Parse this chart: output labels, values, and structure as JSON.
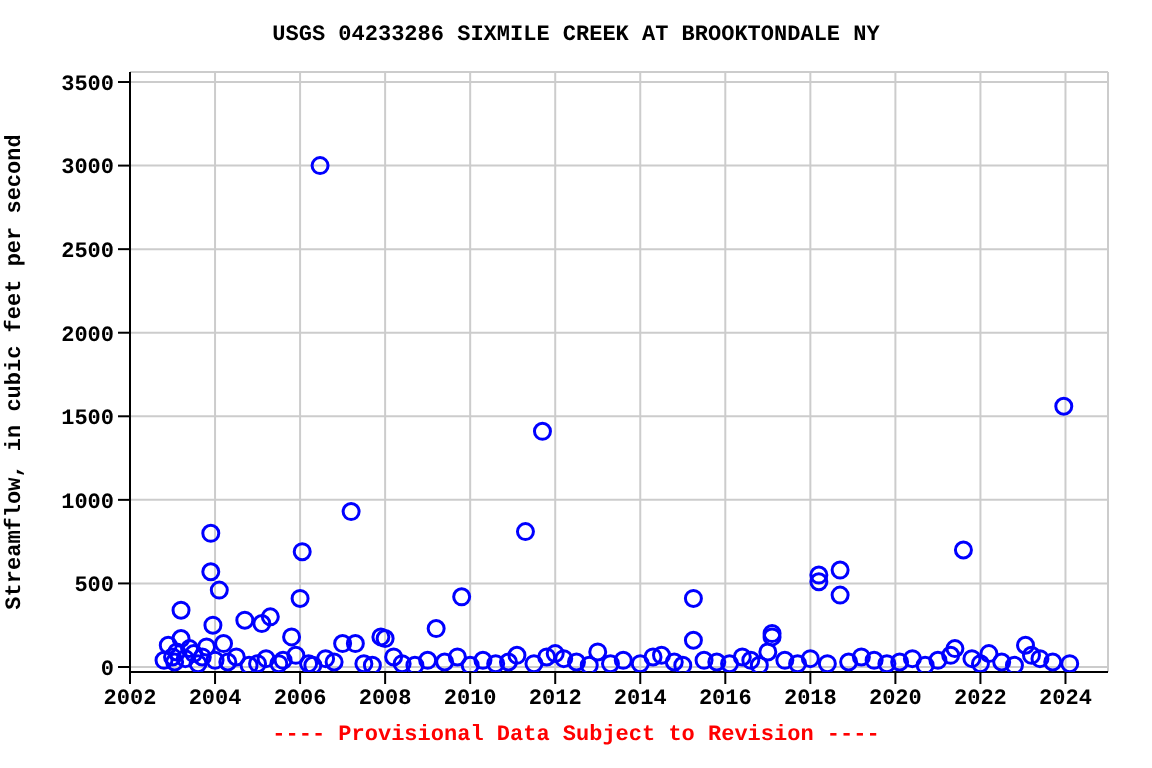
{
  "chart_data": {
    "type": "scatter",
    "title": "USGS 04233286 SIXMILE CREEK AT BROOKTONDALE NY",
    "ylabel": "Streamflow, in cubic feet per second",
    "annotations": [
      "---- Provisional Data Subject to Revision ----"
    ],
    "x": [
      2002.8,
      2002.9,
      2003.0,
      2003.05,
      2003.1,
      2003.2,
      2003.2,
      2003.3,
      2003.4,
      2003.5,
      2003.6,
      2003.7,
      2003.8,
      2003.9,
      2003.9,
      2003.95,
      2004.0,
      2004.1,
      2004.2,
      2004.3,
      2004.5,
      2004.7,
      2004.8,
      2005.0,
      2005.1,
      2005.2,
      2005.3,
      2005.5,
      2005.6,
      2005.8,
      2005.9,
      2006.0,
      2006.05,
      2006.2,
      2006.3,
      2006.47,
      2006.6,
      2006.8,
      2007.0,
      2007.2,
      2007.3,
      2007.5,
      2007.7,
      2007.9,
      2008.0,
      2008.2,
      2008.4,
      2008.7,
      2009.0,
      2009.2,
      2009.4,
      2009.7,
      2009.8,
      2010.0,
      2010.3,
      2010.6,
      2010.9,
      2011.1,
      2011.3,
      2011.5,
      2011.7,
      2011.8,
      2012.0,
      2012.2,
      2012.5,
      2012.8,
      2013.0,
      2013.3,
      2013.6,
      2014.0,
      2014.3,
      2014.5,
      2014.8,
      2015.0,
      2015.25,
      2015.25,
      2015.5,
      2015.8,
      2016.1,
      2016.4,
      2016.6,
      2016.8,
      2017.0,
      2017.1,
      2017.1,
      2017.4,
      2017.7,
      2018.0,
      2018.2,
      2018.2,
      2018.4,
      2018.7,
      2018.7,
      2018.9,
      2019.2,
      2019.5,
      2019.8,
      2020.1,
      2020.4,
      2020.7,
      2021.0,
      2021.3,
      2021.4,
      2021.6,
      2021.8,
      2022.0,
      2022.2,
      2022.5,
      2022.8,
      2023.06,
      2023.2,
      2023.4,
      2023.7,
      2023.96,
      2024.1
    ],
    "values": [
      40,
      130,
      60,
      30,
      90,
      340,
      170,
      50,
      110,
      80,
      20,
      60,
      120,
      800,
      570,
      250,
      40,
      460,
      140,
      30,
      60,
      280,
      10,
      20,
      260,
      50,
      300,
      20,
      40,
      180,
      70,
      410,
      690,
      20,
      10,
      3000,
      50,
      30,
      140,
      930,
      140,
      20,
      10,
      180,
      170,
      60,
      20,
      10,
      40,
      230,
      30,
      60,
      420,
      10,
      40,
      20,
      30,
      70,
      810,
      20,
      1410,
      60,
      80,
      50,
      30,
      10,
      90,
      20,
      40,
      20,
      60,
      70,
      30,
      10,
      410,
      160,
      40,
      30,
      20,
      60,
      40,
      10,
      90,
      200,
      180,
      40,
      20,
      50,
      550,
      510,
      20,
      580,
      430,
      30,
      60,
      40,
      20,
      30,
      50,
      10,
      40,
      70,
      110,
      700,
      50,
      20,
      80,
      30,
      10,
      130,
      70,
      50,
      30,
      1560,
      20
    ],
    "color": "#0000ff",
    "marker": "circle",
    "grid": true,
    "xlim": [
      2002,
      2025
    ],
    "xticks": [
      2002,
      2004,
      2006,
      2008,
      2010,
      2012,
      2014,
      2016,
      2018,
      2020,
      2022,
      2024
    ],
    "ylim": [
      -30,
      3560
    ],
    "yticks": [
      0,
      500,
      1000,
      1500,
      2000,
      2500,
      3000,
      3500
    ]
  }
}
